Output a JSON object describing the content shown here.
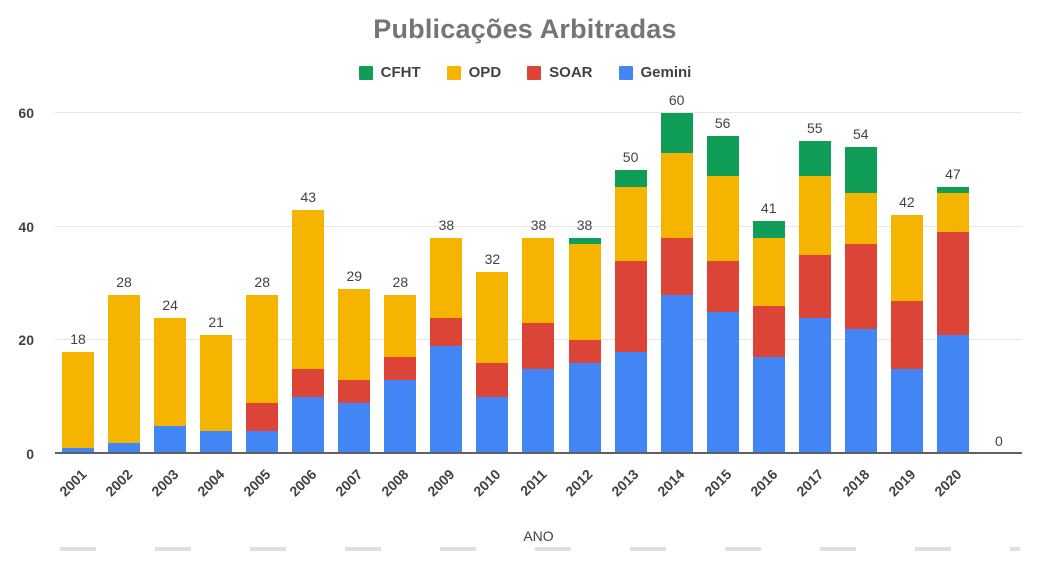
{
  "chart_data": {
    "type": "bar",
    "stacked": true,
    "title": "Publicações Arbitradas",
    "xlabel": "ANO",
    "ylabel": "",
    "ylim": [
      0,
      60
    ],
    "yticks": [
      0,
      20,
      40,
      60
    ],
    "grid": true,
    "legend": {
      "position": "top",
      "entries": [
        "CFHT",
        "OPD",
        "SOAR",
        "Gemini"
      ]
    },
    "categories": [
      "2001",
      "2002",
      "2003",
      "2004",
      "2005",
      "2006",
      "2007",
      "2008",
      "2009",
      "2010",
      "2011",
      "2012",
      "2013",
      "2014",
      "2015",
      "2016",
      "2017",
      "2018",
      "2019",
      "2020",
      ""
    ],
    "totals": [
      18,
      28,
      24,
      21,
      28,
      43,
      29,
      28,
      38,
      32,
      38,
      38,
      50,
      60,
      56,
      41,
      55,
      54,
      42,
      47,
      0
    ],
    "series": [
      {
        "name": "Gemini",
        "color": "#4285F4",
        "values": [
          1,
          2,
          5,
          4,
          4,
          10,
          9,
          13,
          19,
          10,
          15,
          16,
          18,
          28,
          25,
          17,
          24,
          22,
          15,
          21,
          0
        ]
      },
      {
        "name": "SOAR",
        "color": "#DB4437",
        "values": [
          0,
          0,
          0,
          0,
          5,
          5,
          4,
          4,
          5,
          6,
          8,
          4,
          16,
          10,
          9,
          9,
          11,
          15,
          12,
          18,
          0
        ]
      },
      {
        "name": "OPD",
        "color": "#F4B400",
        "values": [
          17,
          26,
          19,
          17,
          19,
          28,
          16,
          11,
          14,
          16,
          15,
          17,
          13,
          15,
          15,
          12,
          14,
          9,
          15,
          7,
          0
        ]
      },
      {
        "name": "CFHT",
        "color": "#0F9D58",
        "values": [
          0,
          0,
          0,
          0,
          0,
          0,
          0,
          0,
          0,
          0,
          0,
          1,
          3,
          7,
          7,
          3,
          6,
          8,
          0,
          1,
          0
        ]
      }
    ]
  }
}
